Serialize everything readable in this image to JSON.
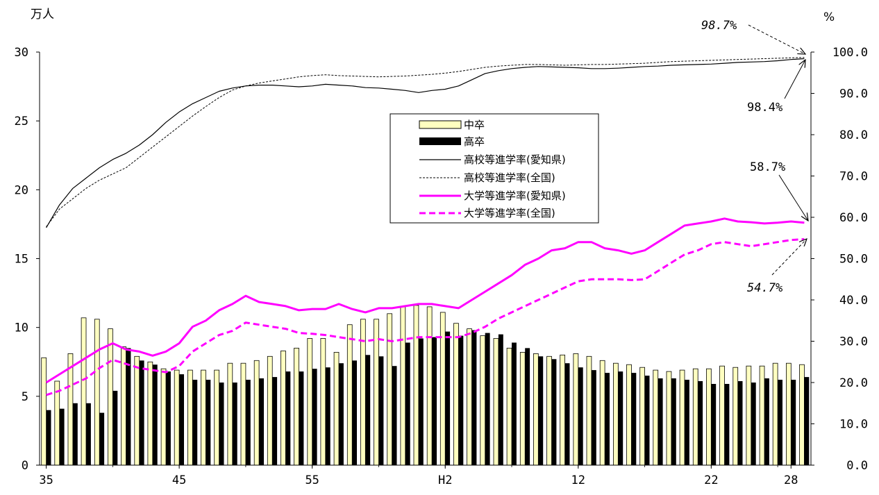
{
  "chart_data": {
    "type": "bar",
    "left_unit": "万人",
    "right_unit": "%",
    "left_axis": {
      "ylim": [
        0,
        30
      ],
      "ticks": [
        "0",
        "5",
        "10",
        "15",
        "20",
        "25",
        "30"
      ]
    },
    "right_axis": {
      "ylim": [
        0,
        100
      ],
      "ticks": [
        "0.0",
        "10.0",
        "20.0",
        "30.0",
        "40.0",
        "50.0",
        "60.0",
        "70.0",
        "80.0",
        "90.0",
        "100.0"
      ]
    },
    "x_tick_labels": [
      "35",
      "45",
      "55",
      "H2",
      "12",
      "22",
      "28"
    ],
    "x_tick_index": [
      0,
      10,
      20,
      30,
      40,
      50,
      56
    ],
    "grid": false,
    "legend_position": "center",
    "legend": {
      "chusotsu": "中卒",
      "kousotsu": "高卒",
      "hs_aichi": "高校等進学率(愛知県)",
      "hs_national": "高校等進学率(全国)",
      "univ_aichi": "大学等進学率(愛知県)",
      "univ_national": "大学等進学率(全国)"
    },
    "colors": {
      "chusotsu": "#FFFFC0",
      "kousotsu": "#000000",
      "hs_aichi": "#000000",
      "hs_national": "#000000",
      "univ_aichi": "#FF00FF",
      "univ_national": "#FF00FF"
    },
    "series": [
      {
        "key": "chusotsu",
        "axis": "left",
        "render": "bar",
        "values": [
          7.8,
          6.1,
          8.1,
          10.7,
          10.6,
          9.9,
          8.6,
          7.9,
          7.5,
          7.0,
          6.9,
          6.9,
          6.9,
          6.9,
          7.4,
          7.4,
          7.6,
          7.9,
          8.3,
          8.5,
          9.2,
          9.2,
          8.2,
          10.2,
          10.6,
          10.6,
          11.0,
          11.5,
          11.6,
          11.5,
          11.1,
          10.3,
          9.9,
          9.4,
          9.2,
          8.5,
          8.2,
          8.1,
          7.9,
          8.0,
          8.1,
          7.9,
          7.6,
          7.4,
          7.3,
          7.1,
          6.9,
          6.8,
          6.9,
          7.0,
          7.0,
          7.2,
          7.1,
          7.2,
          7.2,
          7.4,
          7.4,
          7.3
        ]
      },
      {
        "key": "kousotsu",
        "axis": "left",
        "render": "bar",
        "values": [
          4.0,
          4.1,
          4.5,
          4.5,
          3.8,
          5.4,
          8.5,
          7.6,
          7.3,
          6.8,
          6.6,
          6.2,
          6.2,
          6.0,
          6.0,
          6.2,
          6.3,
          6.4,
          6.8,
          6.8,
          7.0,
          7.1,
          7.4,
          7.6,
          8.0,
          7.9,
          7.2,
          8.9,
          9.2,
          9.3,
          9.7,
          9.4,
          9.8,
          9.6,
          9.5,
          8.9,
          8.5,
          7.9,
          7.7,
          7.4,
          7.1,
          6.9,
          6.7,
          6.8,
          6.7,
          6.5,
          6.3,
          6.3,
          6.2,
          6.1,
          5.9,
          5.9,
          6.1,
          6.0,
          6.3,
          6.2,
          6.2,
          6.4
        ]
      },
      {
        "key": "hs_aichi",
        "axis": "right",
        "render": "line",
        "style": "solid",
        "values": [
          57.5,
          63.0,
          67.0,
          69.5,
          72.0,
          74.0,
          75.5,
          77.5,
          80.0,
          83.0,
          85.5,
          87.5,
          89.0,
          90.5,
          91.3,
          91.8,
          92.0,
          92.0,
          91.8,
          91.6,
          91.8,
          92.2,
          92.0,
          91.8,
          91.4,
          91.3,
          91.0,
          90.7,
          90.2,
          90.7,
          91.0,
          91.8,
          93.3,
          94.8,
          95.5,
          96.0,
          96.3,
          96.5,
          96.4,
          96.3,
          96.2,
          96.0,
          96.0,
          96.1,
          96.3,
          96.5,
          96.6,
          96.8,
          96.9,
          97.0,
          97.1,
          97.3,
          97.5,
          97.6,
          97.7,
          97.9,
          98.2,
          98.4
        ]
      },
      {
        "key": "hs_national",
        "axis": "right",
        "render": "line",
        "style": "dashed",
        "values": [
          57.7,
          62.0,
          64.5,
          67.0,
          69.0,
          70.5,
          72.0,
          74.5,
          77.0,
          79.5,
          82.0,
          84.5,
          86.8,
          89.0,
          90.8,
          91.8,
          92.5,
          93.0,
          93.5,
          94.0,
          94.3,
          94.5,
          94.3,
          94.2,
          94.1,
          94.0,
          94.1,
          94.2,
          94.4,
          94.6,
          94.9,
          95.3,
          95.8,
          96.3,
          96.6,
          96.8,
          97.0,
          97.0,
          96.9,
          96.8,
          96.9,
          97.0,
          97.0,
          97.1,
          97.2,
          97.3,
          97.5,
          97.7,
          97.8,
          97.9,
          98.0,
          98.1,
          98.2,
          98.3,
          98.4,
          98.5,
          98.6,
          98.7
        ]
      },
      {
        "key": "univ_aichi",
        "axis": "right",
        "render": "line",
        "style": "solid",
        "values": [
          20.0,
          22.0,
          24.0,
          26.0,
          28.0,
          29.5,
          28.0,
          27.5,
          26.5,
          27.5,
          29.5,
          33.5,
          35.0,
          37.5,
          39.0,
          41.0,
          39.5,
          39.0,
          38.5,
          37.5,
          37.8,
          37.8,
          39.0,
          37.8,
          37.0,
          38.0,
          38.0,
          38.5,
          39.0,
          39.0,
          38.5,
          38.0,
          40.0,
          42.0,
          44.0,
          46.0,
          48.5,
          50.0,
          52.0,
          52.5,
          54.0,
          54.0,
          52.5,
          52.0,
          51.2,
          52.0,
          54.0,
          56.0,
          58.0,
          58.5,
          59.0,
          59.7,
          59.0,
          58.8,
          58.5,
          58.7,
          59.0,
          58.7
        ]
      },
      {
        "key": "univ_national",
        "axis": "right",
        "render": "line",
        "style": "dashed",
        "values": [
          17.0,
          18.0,
          19.5,
          21.0,
          23.5,
          25.5,
          24.5,
          23.5,
          23.0,
          22.5,
          24.0,
          27.5,
          29.5,
          31.5,
          32.5,
          34.5,
          34.0,
          33.5,
          33.0,
          32.0,
          31.8,
          31.5,
          31.0,
          30.5,
          30.0,
          30.5,
          30.0,
          30.5,
          31.0,
          31.0,
          31.0,
          31.0,
          32.0,
          33.5,
          35.5,
          37.0,
          38.5,
          40.0,
          41.5,
          43.0,
          44.5,
          45.0,
          45.0,
          45.0,
          44.8,
          45.0,
          47.0,
          49.0,
          51.0,
          52.0,
          53.5,
          54.0,
          53.5,
          53.0,
          53.5,
          54.0,
          54.5,
          54.7
        ]
      }
    ],
    "annotations": [
      {
        "text": "98.7%",
        "style": "italic"
      },
      {
        "text": "98.4%",
        "style": "normal"
      },
      {
        "text": "58.7%",
        "style": "normal"
      },
      {
        "text": "54.7%",
        "style": "italic"
      }
    ]
  }
}
